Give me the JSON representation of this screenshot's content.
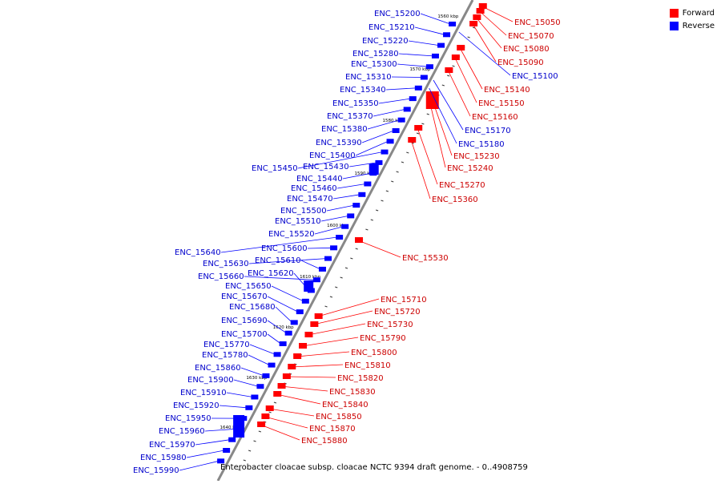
{
  "legend": {
    "forward_label": "Forward",
    "reverse_label": "Reverse",
    "forward_color": "#ff0000",
    "reverse_color": "#0000ff"
  },
  "caption": "Enterobacter cloacae subsp. cloacae NCTC 9394 draft genome. - 0..4908759",
  "axis": {
    "ticks": [
      "1560 kbp",
      "1570 kbp",
      "1580 kbp",
      "1590 kbp",
      "1600 kbp",
      "1610 kbp",
      "1620 kbp",
      "1630 kbp",
      "1640 kbp"
    ]
  },
  "genes_forward": [
    "ENC_15050",
    "ENC_15070",
    "ENC_15080",
    "ENC_15090",
    "ENC_15140",
    "ENC_15150",
    "ENC_15160",
    "ENC_15230",
    "ENC_15240",
    "ENC_15270",
    "ENC_15360",
    "ENC_15530",
    "ENC_15710",
    "ENC_15720",
    "ENC_15730",
    "ENC_15790",
    "ENC_15800",
    "ENC_15810",
    "ENC_15820",
    "ENC_15830",
    "ENC_15840",
    "ENC_15850",
    "ENC_15870",
    "ENC_15880"
  ],
  "genes_reverse_right": [
    "ENC_15100",
    "ENC_15170",
    "ENC_15180"
  ],
  "genes_reverse_left": [
    "ENC_15200",
    "ENC_15210",
    "ENC_15220",
    "ENC_15280",
    "ENC_15300",
    "ENC_15310",
    "ENC_15340",
    "ENC_15350",
    "ENC_15370",
    "ENC_15380",
    "ENC_15390",
    "ENC_15400",
    "ENC_15450",
    "ENC_15430",
    "ENC_15440",
    "ENC_15460",
    "ENC_15470",
    "ENC_15500",
    "ENC_15510",
    "ENC_15520",
    "ENC_15640",
    "ENC_15600",
    "ENC_15630",
    "ENC_15610",
    "ENC_15660",
    "ENC_15620",
    "ENC_15650",
    "ENC_15670",
    "ENC_15680",
    "ENC_15690",
    "ENC_15700",
    "ENC_15770",
    "ENC_15780",
    "ENC_15860",
    "ENC_15900",
    "ENC_15910",
    "ENC_15920",
    "ENC_15950",
    "ENC_15960",
    "ENC_15970",
    "ENC_15980",
    "ENC_15990"
  ]
}
